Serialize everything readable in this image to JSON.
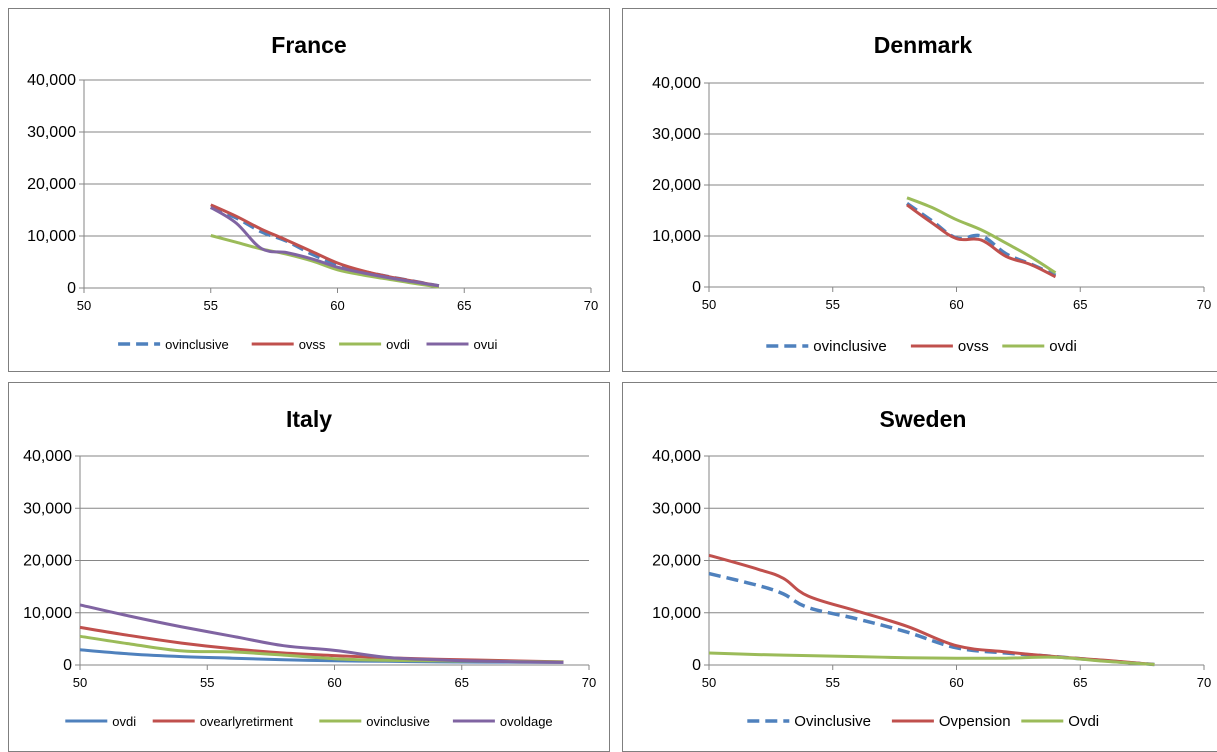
{
  "chart_data": [
    {
      "type": "line",
      "title": "France",
      "xlim": [
        50,
        70
      ],
      "ylim": [
        0,
        40000
      ],
      "xticks": [
        "50",
        "55",
        "60",
        "65",
        "70"
      ],
      "yticks": [
        "0",
        "10,000",
        "20,000",
        "30,000",
        "40,000"
      ],
      "legend_position": "bottom",
      "series": [
        {
          "name": "ovinclusive",
          "color": "#4f81bd",
          "dash": "dashed",
          "x": [
            55,
            56,
            57,
            58,
            59,
            60,
            61,
            62,
            63,
            64
          ],
          "y": [
            15500,
            13500,
            10800,
            9000,
            6500,
            4500,
            3200,
            2200,
            1300,
            400
          ]
        },
        {
          "name": "ovss",
          "color": "#c0504d",
          "dash": "solid",
          "x": [
            55,
            56,
            57,
            58,
            59,
            60,
            61,
            62,
            63,
            64
          ],
          "y": [
            16000,
            13800,
            11300,
            9200,
            7000,
            4800,
            3300,
            2200,
            1300,
            400
          ]
        },
        {
          "name": "ovdi",
          "color": "#9bbb59",
          "dash": "solid",
          "x": [
            55,
            56,
            57,
            58,
            59,
            60,
            61,
            62,
            63,
            64
          ],
          "y": [
            10100,
            8800,
            7500,
            6500,
            5200,
            3500,
            2500,
            1700,
            900,
            200
          ]
        },
        {
          "name": "ovui",
          "color": "#8064a2",
          "dash": "solid",
          "x": [
            55,
            56,
            57,
            58,
            59,
            60,
            61,
            62,
            63,
            64
          ],
          "y": [
            15500,
            12500,
            7600,
            6800,
            5600,
            4000,
            2900,
            2000,
            1200,
            400
          ]
        }
      ]
    },
    {
      "type": "line",
      "title": "Denmark",
      "xlim": [
        50,
        70
      ],
      "ylim": [
        0,
        40000
      ],
      "xticks": [
        "50",
        "55",
        "60",
        "65",
        "70"
      ],
      "yticks": [
        "0",
        "10,000",
        "20,000",
        "30,000",
        "40,000"
      ],
      "legend_position": "bottom",
      "series": [
        {
          "name": "ovinclusive",
          "color": "#4f81bd",
          "dash": "dashed",
          "x": [
            58,
            59,
            60,
            61,
            62,
            63,
            64
          ],
          "y": [
            16400,
            13000,
            9600,
            10000,
            6500,
            4500,
            2300
          ]
        },
        {
          "name": "ovss",
          "color": "#c0504d",
          "dash": "solid",
          "x": [
            58,
            59,
            60,
            61,
            62,
            63,
            64
          ],
          "y": [
            16100,
            12600,
            9500,
            9200,
            6000,
            4400,
            2000
          ]
        },
        {
          "name": "ovdi",
          "color": "#9bbb59",
          "dash": "solid",
          "x": [
            58,
            59,
            60,
            61,
            62,
            63,
            64
          ],
          "y": [
            17500,
            15600,
            13200,
            11200,
            8600,
            5900,
            2800
          ]
        }
      ]
    },
    {
      "type": "line",
      "title": "Italy",
      "xlim": [
        50,
        70
      ],
      "ylim": [
        0,
        40000
      ],
      "xticks": [
        "50",
        "55",
        "60",
        "65",
        "70"
      ],
      "yticks": [
        "0",
        "10,000",
        "20,000",
        "30,000",
        "40,000"
      ],
      "legend_position": "bottom",
      "series": [
        {
          "name": "ovdi",
          "color": "#4f81bd",
          "dash": "solid",
          "x": [
            50,
            52,
            54,
            56,
            58,
            60,
            62,
            64,
            66,
            69
          ],
          "y": [
            2900,
            2100,
            1600,
            1300,
            1000,
            800,
            700,
            600,
            550,
            500
          ]
        },
        {
          "name": "ovearlyretirment",
          "color": "#c0504d",
          "dash": "solid",
          "x": [
            50,
            52,
            54,
            56,
            58,
            60,
            62,
            64,
            66,
            69
          ],
          "y": [
            7200,
            5600,
            4200,
            3100,
            2300,
            1800,
            1400,
            1100,
            900,
            600
          ]
        },
        {
          "name": "ovinclusive",
          "color": "#9bbb59",
          "dash": "solid",
          "x": [
            50,
            52,
            54,
            56,
            58,
            60,
            62,
            64,
            66,
            69
          ],
          "y": [
            5500,
            4000,
            2700,
            2500,
            1900,
            1200,
            900,
            800,
            700,
            600
          ]
        },
        {
          "name": "ovoldage",
          "color": "#8064a2",
          "dash": "solid",
          "x": [
            50,
            52,
            54,
            56,
            58,
            60,
            62,
            64,
            66,
            69
          ],
          "y": [
            11500,
            9300,
            7300,
            5500,
            3700,
            2800,
            1500,
            1000,
            700,
            500
          ]
        }
      ]
    },
    {
      "type": "line",
      "title": "Sweden",
      "xlim": [
        50,
        70
      ],
      "ylim": [
        0,
        40000
      ],
      "xticks": [
        "50",
        "55",
        "60",
        "65",
        "70"
      ],
      "yticks": [
        "0",
        "10,000",
        "20,000",
        "30,000",
        "40,000"
      ],
      "legend_position": "bottom",
      "series": [
        {
          "name": "Ovinclusive",
          "color": "#4f81bd",
          "dash": "dashed",
          "x": [
            50,
            52,
            53,
            54,
            56,
            58,
            60,
            62,
            64,
            66,
            68
          ],
          "y": [
            17500,
            15200,
            13600,
            11000,
            8800,
            6300,
            3300,
            2300,
            1600,
            800,
            100
          ]
        },
        {
          "name": "Ovpension",
          "color": "#c0504d",
          "dash": "solid",
          "x": [
            50,
            52,
            53,
            54,
            56,
            58,
            60,
            62,
            64,
            66,
            68
          ],
          "y": [
            21000,
            18300,
            16600,
            13200,
            10300,
            7400,
            3700,
            2500,
            1600,
            900,
            100
          ]
        },
        {
          "name": "Ovdi",
          "color": "#9bbb59",
          "dash": "solid",
          "x": [
            50,
            52,
            54,
            56,
            58,
            60,
            62,
            64,
            66,
            68
          ],
          "y": [
            2300,
            2000,
            1800,
            1600,
            1400,
            1300,
            1300,
            1500,
            700,
            100
          ]
        }
      ]
    }
  ]
}
